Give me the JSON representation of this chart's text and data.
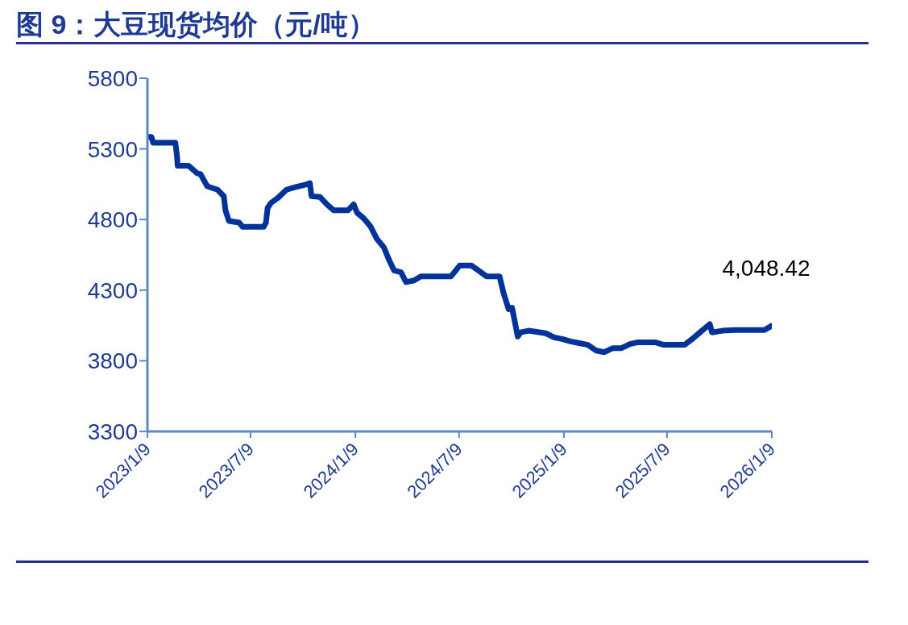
{
  "chart_data": {
    "type": "line",
    "title": "图 9：大豆现货均价（元/吨）",
    "x": [
      "2023-01-10",
      "2023-01-16",
      "2023-01-19",
      "2023-02-27",
      "2023-03-02",
      "2023-03-03",
      "2023-03-22",
      "2023-04-06",
      "2023-04-12",
      "2023-04-24",
      "2023-05-12",
      "2023-05-23",
      "2023-05-26",
      "2023-06-01",
      "2023-06-19",
      "2023-06-25",
      "2023-08-01",
      "2023-08-05",
      "2023-08-08",
      "2023-08-14",
      "2023-08-26",
      "2023-09-10",
      "2023-09-25",
      "2023-10-14",
      "2023-10-21",
      "2023-10-24",
      "2023-11-08",
      "2023-11-20",
      "2023-12-02",
      "2023-12-27",
      "2024-01-06",
      "2024-01-12",
      "2024-01-24",
      "2024-02-05",
      "2024-02-16",
      "2024-02-28",
      "2024-03-08",
      "2024-03-17",
      "2024-03-29",
      "2024-04-07",
      "2024-04-21",
      "2024-05-03",
      "2024-06-25",
      "2024-07-10",
      "2024-07-31",
      "2024-08-12",
      "2024-08-26",
      "2024-09-18",
      "2024-09-25",
      "2024-10-04",
      "2024-10-10",
      "2024-10-20",
      "2024-10-25",
      "2024-11-08",
      "2024-12-08",
      "2024-12-23",
      "2025-01-06",
      "2025-01-21",
      "2025-02-05",
      "2025-02-20",
      "2025-03-07",
      "2025-03-21",
      "2025-04-05",
      "2025-04-20",
      "2025-05-05",
      "2025-05-19",
      "2025-06-18",
      "2025-07-03",
      "2025-08-09",
      "2025-08-24",
      "2025-09-03",
      "2025-09-15",
      "2025-09-22",
      "2025-09-26",
      "2025-10-14",
      "2025-11-05",
      "2025-12-27",
      "2026-01-09"
    ],
    "series": [
      {
        "color": "#003399",
        "values": [
          5385,
          5385,
          5344,
          5344,
          5245,
          5181,
          5181,
          5128,
          5122,
          5035,
          5011,
          4965,
          4865,
          4790,
          4778,
          4748,
          4748,
          4778,
          4883,
          4918,
          4953,
          5011,
          5029,
          5047,
          5058,
          4965,
          4959,
          4907,
          4865,
          4865,
          4907,
          4848,
          4807,
          4748,
          4661,
          4603,
          4515,
          4439,
          4427,
          4357,
          4369,
          4398,
          4398,
          4474,
          4474,
          4439,
          4398,
          4398,
          4281,
          4165,
          4176,
          3972,
          4001,
          4013,
          3995,
          3966,
          3954,
          3937,
          3925,
          3913,
          3872,
          3861,
          3890,
          3890,
          3919,
          3931,
          3931,
          3913,
          3913,
          3960,
          3995,
          4036,
          4059,
          4001,
          4013,
          4018,
          4018,
          4048.42
        ]
      }
    ],
    "xlim": [
      "2023-01-09",
      "2026-01-09"
    ],
    "xticks": [
      {
        "value": "2023-01-09",
        "label": "2023/1/9"
      },
      {
        "value": "2023-07-09",
        "label": "2023/7/9"
      },
      {
        "value": "2024-01-09",
        "label": "2024/1/9"
      },
      {
        "value": "2024-07-09",
        "label": "2024/7/9"
      },
      {
        "value": "2025-01-09",
        "label": "2025/1/9"
      },
      {
        "value": "2025-07-09",
        "label": "2025/7/9"
      },
      {
        "value": "2026-01-09",
        "label": "2026/1/9"
      }
    ],
    "ylim": [
      3300,
      5800
    ],
    "yticks": [
      3300,
      3800,
      4300,
      4800,
      5300,
      5800
    ],
    "grid": false,
    "legend": false,
    "marker": "none",
    "line_style": "solid",
    "annotations": [
      {
        "text": "4,048.42",
        "x": "2026-01-09",
        "y": 4048.42
      }
    ]
  }
}
